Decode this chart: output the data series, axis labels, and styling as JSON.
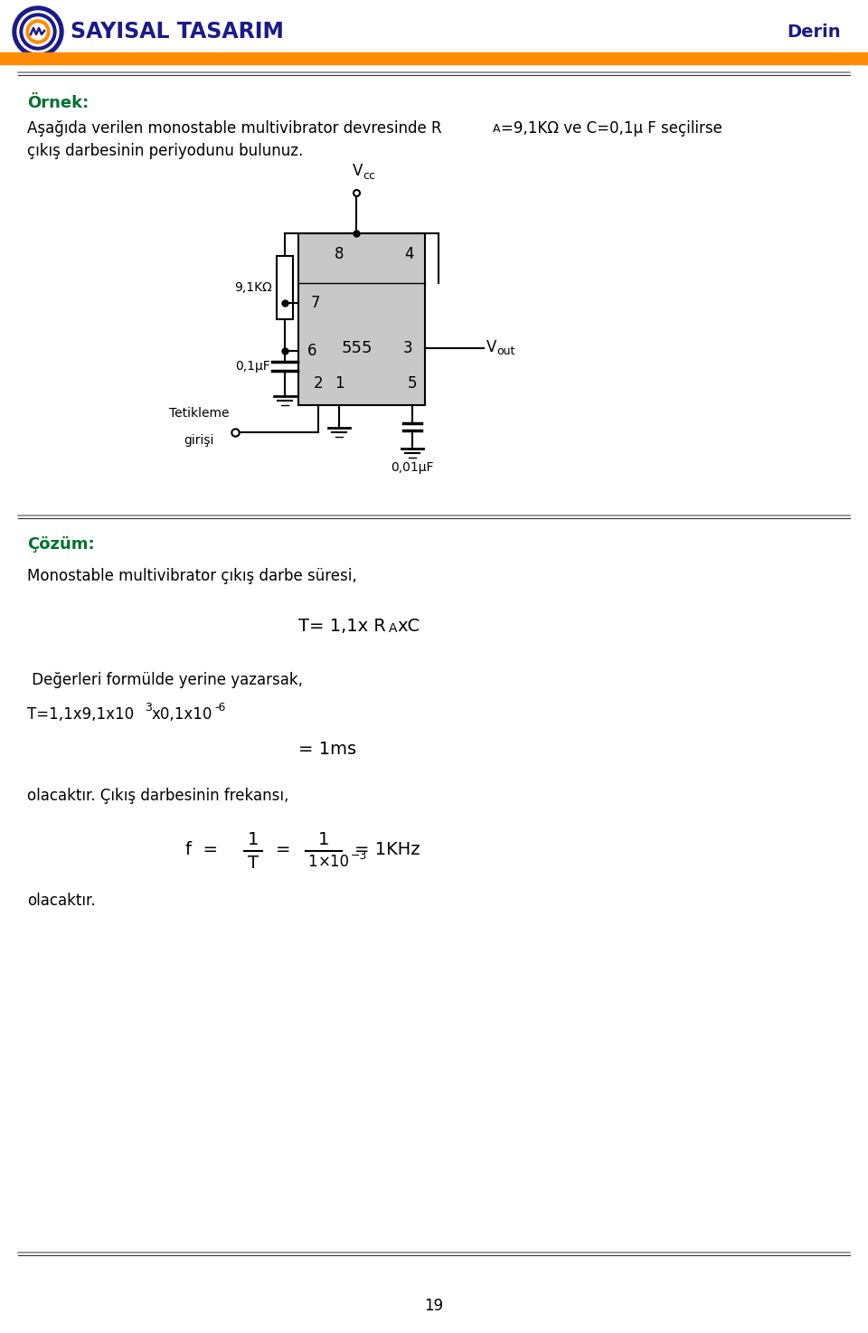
{
  "title": "SAYISAL TASARIM",
  "subtitle": "Derin",
  "header_color": "#FF8C00",
  "title_color": "#1a1a8c",
  "ornek_text": "Örnek:",
  "problem_line1a": "Aşağıda verilen monostable multivibrator devresinde R",
  "problem_line1b": "A",
  "problem_line1c": "=9,1KΩ ve C=0,1μ F seçilirse",
  "problem_line2": "çıkış darbesinin periyodunu bulunuz.",
  "cozum_text": "Çözüm:",
  "mono_text": "Monostable multivibrator çıkış darbe süresi,",
  "degerleri_text": " Değerleri formülde yerine yazarsak,",
  "freq_text": "olacaktır. Çıkış darbesinin frekansı,",
  "olacaktir1": "olacaktır.",
  "olacaktir2": "olacaktır.",
  "page_num": "19",
  "bg_color": "#ffffff",
  "ic555_fill": "#c8c8c8",
  "ic555_top_fill": "#d8d8d8",
  "resistor_label": "9,1KΩ",
  "cap_label1": "0,1μF",
  "cap_label2": "0,01μF",
  "trigger_label1": "Tetikleme",
  "trigger_label2": "girişi"
}
